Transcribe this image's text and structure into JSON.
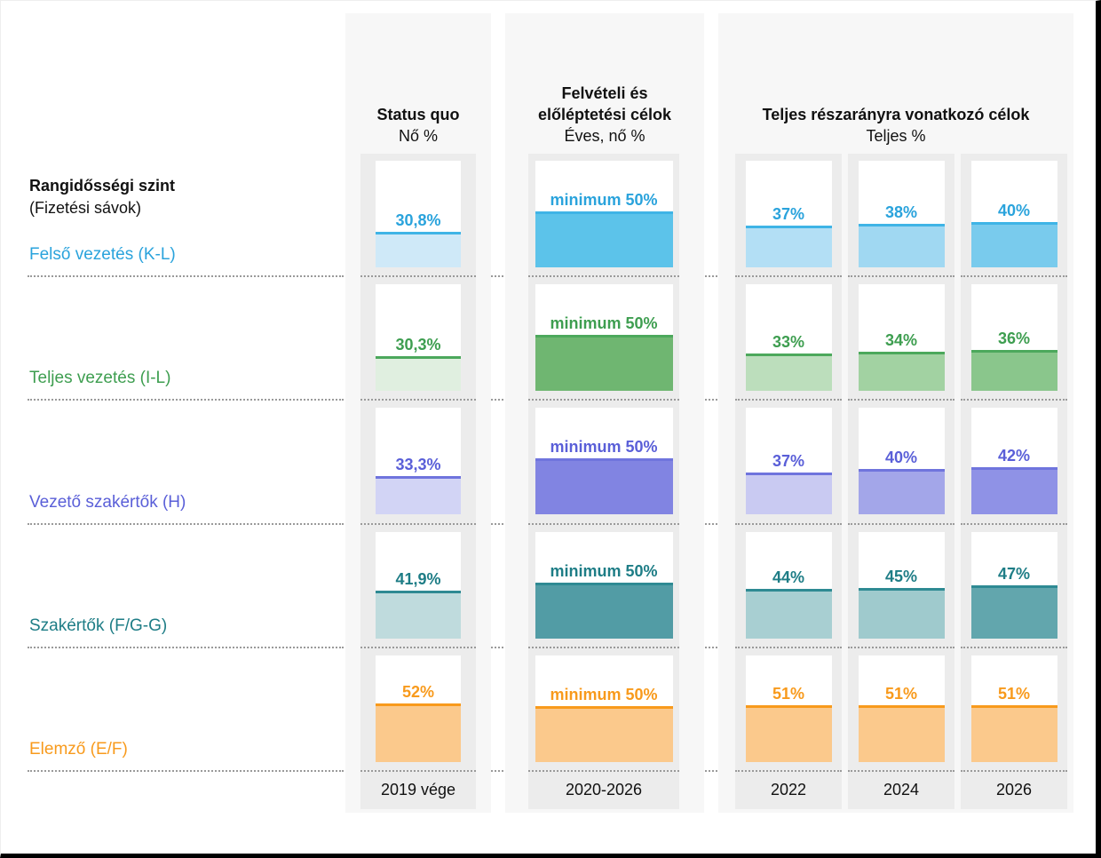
{
  "left_header": {
    "title": "Rangidősségi szint",
    "subtitle": "(Fizetési sávok)"
  },
  "groups": [
    {
      "title_lines": [
        "Status quo"
      ],
      "subtitle": "Nő %"
    },
    {
      "title_lines": [
        "Felvételi és",
        "előléptetési célok"
      ],
      "subtitle": "Éves, nő %"
    },
    {
      "title_lines": [
        "Teljes részarányra vonatkozó célok"
      ],
      "subtitle": "Teljes %"
    }
  ],
  "footers": [
    "2019 vége",
    "2020-2026",
    "2022",
    "2024",
    "2026"
  ],
  "chart_data": {
    "type": "bar",
    "unit": "%",
    "ylim": [
      0,
      100
    ],
    "columns": [
      "Status quo, nő % (2019 vége)",
      "Felvételi és előléptetési célok, éves nő % (2020-2026)",
      "Teljes részarány célok, teljes % (2022)",
      "Teljes részarány célok, teljes % (2024)",
      "Teljes részarány célok, teljes % (2026)"
    ],
    "rows": [
      {
        "label": "Felső vezetés (K-L)",
        "text_color": "#2AA3DC",
        "line_color": "#3FB4E6",
        "cells": [
          {
            "column": "2019 vége",
            "label": "30,8%",
            "value": 30.8,
            "fill": "#CFE9F8"
          },
          {
            "column": "2020-2026",
            "label": "minimum 50%",
            "value": 50,
            "fill": "#5CC3EA"
          },
          {
            "column": "2022",
            "label": "37%",
            "value": 37,
            "fill": "#B3DFF5"
          },
          {
            "column": "2024",
            "label": "38%",
            "value": 38,
            "fill": "#A0D8F2"
          },
          {
            "column": "2026",
            "label": "40%",
            "value": 40,
            "fill": "#79CBED"
          }
        ]
      },
      {
        "label": "Teljes vezetés (I-L)",
        "text_color": "#3E9E50",
        "line_color": "#4CA85C",
        "cells": [
          {
            "column": "2019 vége",
            "label": "30,3%",
            "value": 30.3,
            "fill": "#E0EFE0"
          },
          {
            "column": "2020-2026",
            "label": "minimum 50%",
            "value": 50,
            "fill": "#6FB671"
          },
          {
            "column": "2022",
            "label": "33%",
            "value": 33,
            "fill": "#BCDEBC"
          },
          {
            "column": "2024",
            "label": "34%",
            "value": 34,
            "fill": "#A2D2A2"
          },
          {
            "column": "2026",
            "label": "36%",
            "value": 36,
            "fill": "#8AC68C"
          }
        ]
      },
      {
        "label": "Vezető szakértők (H)",
        "text_color": "#5A5FD8",
        "line_color": "#6F74DD",
        "cells": [
          {
            "column": "2019 vége",
            "label": "33,3%",
            "value": 33.3,
            "fill": "#D2D4F5"
          },
          {
            "column": "2020-2026",
            "label": "minimum 50%",
            "value": 50,
            "fill": "#8184E2"
          },
          {
            "column": "2022",
            "label": "37%",
            "value": 37,
            "fill": "#C9CAF2"
          },
          {
            "column": "2024",
            "label": "40%",
            "value": 40,
            "fill": "#A3A6E9"
          },
          {
            "column": "2026",
            "label": "42%",
            "value": 42,
            "fill": "#8F92E6"
          }
        ]
      },
      {
        "label": "Szakértők (F/G-G)",
        "text_color": "#1E7D86",
        "line_color": "#2E8A93",
        "cells": [
          {
            "column": "2019 vége",
            "label": "41,9%",
            "value": 41.9,
            "fill": "#BFDBDD"
          },
          {
            "column": "2020-2026",
            "label": "minimum 50%",
            "value": 50,
            "fill": "#529CA5"
          },
          {
            "column": "2022",
            "label": "44%",
            "value": 44,
            "fill": "#A8CFD2"
          },
          {
            "column": "2024",
            "label": "45%",
            "value": 45,
            "fill": "#9FCACD"
          },
          {
            "column": "2026",
            "label": "47%",
            "value": 47,
            "fill": "#62A6AD"
          }
        ]
      },
      {
        "label": "Elemző (E/F)",
        "text_color": "#F89A1C",
        "line_color": "#F89A1C",
        "cells": [
          {
            "column": "2019 vége",
            "label": "52%",
            "value": 52,
            "fill": "#FBC98C"
          },
          {
            "column": "2020-2026",
            "label": "minimum 50%",
            "value": 50,
            "fill": "#FBC98C"
          },
          {
            "column": "2022",
            "label": "51%",
            "value": 51,
            "fill": "#FBC98C"
          },
          {
            "column": "2024",
            "label": "51%",
            "value": 51,
            "fill": "#FBC98C"
          },
          {
            "column": "2026",
            "label": "51%",
            "value": 51,
            "fill": "#FBC98C"
          }
        ]
      }
    ]
  }
}
